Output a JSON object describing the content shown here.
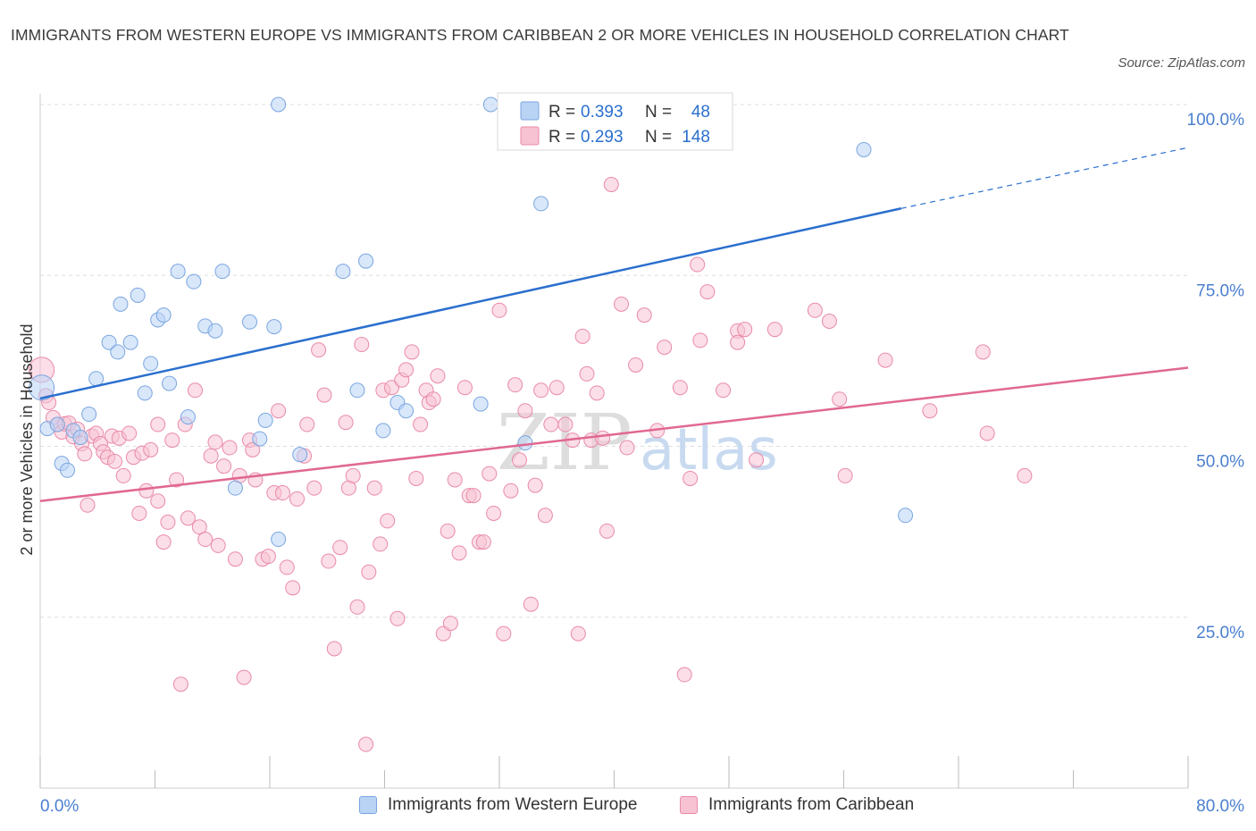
{
  "title": "IMMIGRANTS FROM WESTERN EUROPE VS IMMIGRANTS FROM CARIBBEAN 2 OR MORE VEHICLES IN HOUSEHOLD CORRELATION CHART",
  "source": "Source: ZipAtlas.com",
  "watermark": {
    "zip": "ZIP",
    "atlas": "atlas"
  },
  "colors": {
    "blue_fill": "#b9d3f5",
    "blue_stroke": "#7aa6e0",
    "blue_line": "#2a6fce",
    "pink_fill": "#f7c3d3",
    "pink_stroke": "#e98aa9",
    "pink_line": "#e06892",
    "axis_text": "#4a7fcf",
    "grid": "#dedede"
  },
  "legend_box": {
    "rows": [
      {
        "r_label": "R =",
        "r_value": "0.393",
        "n_label": "N =",
        "n_value": "48"
      },
      {
        "r_label": "R =",
        "r_value": "0.293",
        "n_label": "N =",
        "n_value": "148"
      }
    ]
  },
  "legend_bottom": {
    "blue": "Immigrants from Western Europe",
    "pink": "Immigrants from Caribbean"
  },
  "chart_data": {
    "type": "scatter",
    "title": "IMMIGRANTS FROM WESTERN EUROPE VS IMMIGRANTS FROM CARIBBEAN 2 OR MORE VEHICLES IN HOUSEHOLD CORRELATION CHART",
    "xlabel": "",
    "ylabel": "2 or more Vehicles in Household",
    "xlim": [
      0,
      80
    ],
    "ylim": [
      0,
      100
    ],
    "x_tick_labels": [
      "0.0%",
      "80.0%"
    ],
    "y_tick_labels": [
      "25.0%",
      "50.0%",
      "75.0%",
      "100.0%"
    ],
    "y_ticks": [
      25,
      50,
      75,
      100
    ],
    "grid": true,
    "legend_position": "top-center",
    "series": [
      {
        "name": "Immigrants from Western Europe",
        "color": "#b9d3f5",
        "trend": {
          "x": [
            0,
            60
          ],
          "y": [
            57.0,
            84.8
          ],
          "dashed_to_x": 80,
          "dashed_to_y": 93.7
        },
        "points": [
          [
            0.1,
            58.6
          ],
          [
            0.5,
            52.6
          ],
          [
            1.2,
            53.2
          ],
          [
            1.5,
            47.5
          ],
          [
            1.9,
            46.5
          ],
          [
            2.3,
            52.3
          ],
          [
            2.8,
            51.3
          ],
          [
            3.4,
            54.7
          ],
          [
            3.9,
            59.9
          ],
          [
            4.8,
            65.2
          ],
          [
            5.4,
            63.8
          ],
          [
            5.6,
            70.8
          ],
          [
            6.3,
            65.2
          ],
          [
            6.8,
            72.1
          ],
          [
            7.3,
            57.8
          ],
          [
            7.7,
            62.1
          ],
          [
            8.2,
            68.5
          ],
          [
            8.6,
            69.2
          ],
          [
            9.0,
            59.2
          ],
          [
            9.6,
            75.6
          ],
          [
            10.3,
            54.3
          ],
          [
            10.7,
            74.1
          ],
          [
            11.5,
            67.6
          ],
          [
            12.2,
            66.9
          ],
          [
            12.7,
            75.6
          ],
          [
            13.6,
            43.9
          ],
          [
            14.6,
            68.2
          ],
          [
            15.3,
            51.1
          ],
          [
            15.7,
            53.8
          ],
          [
            16.3,
            67.5
          ],
          [
            16.6,
            36.4
          ],
          [
            16.6,
            100.0
          ],
          [
            18.1,
            48.8
          ],
          [
            21.1,
            75.6
          ],
          [
            22.1,
            58.2
          ],
          [
            22.7,
            77.1
          ],
          [
            23.9,
            52.3
          ],
          [
            24.9,
            56.4
          ],
          [
            25.5,
            55.2
          ],
          [
            30.7,
            56.2
          ],
          [
            31.4,
            100.0
          ],
          [
            33.3,
            100.0
          ],
          [
            33.8,
            50.5
          ],
          [
            34.9,
            85.5
          ],
          [
            39.9,
            100.0
          ],
          [
            47.7,
            100.0
          ],
          [
            57.4,
            93.4
          ],
          [
            60.3,
            39.9
          ]
        ]
      },
      {
        "name": "Immigrants from Caribbean",
        "color": "#f7c3d3",
        "trend": {
          "x": [
            0,
            80
          ],
          "y": [
            42.0,
            61.5
          ]
        },
        "points": [
          [
            0.1,
            61.2
          ],
          [
            0.4,
            57.4
          ],
          [
            0.6,
            56.4
          ],
          [
            0.9,
            54.2
          ],
          [
            1.2,
            53.2
          ],
          [
            1.5,
            52.1
          ],
          [
            1.7,
            53.3
          ],
          [
            2.0,
            53.4
          ],
          [
            2.3,
            51.4
          ],
          [
            2.6,
            52.5
          ],
          [
            2.9,
            50.4
          ],
          [
            3.1,
            48.9
          ],
          [
            3.3,
            41.4
          ],
          [
            3.6,
            51.5
          ],
          [
            3.9,
            51.9
          ],
          [
            4.2,
            50.4
          ],
          [
            4.4,
            49.2
          ],
          [
            4.7,
            48.4
          ],
          [
            5.0,
            51.5
          ],
          [
            5.2,
            47.8
          ],
          [
            5.5,
            51.2
          ],
          [
            5.8,
            45.7
          ],
          [
            6.2,
            51.9
          ],
          [
            6.5,
            48.4
          ],
          [
            6.9,
            40.2
          ],
          [
            7.1,
            49.0
          ],
          [
            7.4,
            43.5
          ],
          [
            7.7,
            49.5
          ],
          [
            8.2,
            42.0
          ],
          [
            8.2,
            53.2
          ],
          [
            8.6,
            36.0
          ],
          [
            8.9,
            38.9
          ],
          [
            9.2,
            50.9
          ],
          [
            9.5,
            45.1
          ],
          [
            9.8,
            15.2
          ],
          [
            10.1,
            53.2
          ],
          [
            10.3,
            39.5
          ],
          [
            10.8,
            58.2
          ],
          [
            11.1,
            38.2
          ],
          [
            11.5,
            36.4
          ],
          [
            11.9,
            48.6
          ],
          [
            12.2,
            50.6
          ],
          [
            12.4,
            35.5
          ],
          [
            12.8,
            47.1
          ],
          [
            13.2,
            49.8
          ],
          [
            13.6,
            33.5
          ],
          [
            13.9,
            45.7
          ],
          [
            14.2,
            16.2
          ],
          [
            14.6,
            50.9
          ],
          [
            14.8,
            49.5
          ],
          [
            15.0,
            45.1
          ],
          [
            15.5,
            33.5
          ],
          [
            15.9,
            33.9
          ],
          [
            16.3,
            43.2
          ],
          [
            16.6,
            55.2
          ],
          [
            16.9,
            43.2
          ],
          [
            17.2,
            32.3
          ],
          [
            17.6,
            29.3
          ],
          [
            17.9,
            42.3
          ],
          [
            18.4,
            48.6
          ],
          [
            18.6,
            53.2
          ],
          [
            19.1,
            43.9
          ],
          [
            19.4,
            64.1
          ],
          [
            19.8,
            57.5
          ],
          [
            20.1,
            33.2
          ],
          [
            20.5,
            20.4
          ],
          [
            20.9,
            35.2
          ],
          [
            21.3,
            53.5
          ],
          [
            21.5,
            43.9
          ],
          [
            21.8,
            45.7
          ],
          [
            22.1,
            26.5
          ],
          [
            22.4,
            64.9
          ],
          [
            22.7,
            6.4
          ],
          [
            22.9,
            31.6
          ],
          [
            23.3,
            43.9
          ],
          [
            23.7,
            35.7
          ],
          [
            23.9,
            58.2
          ],
          [
            24.2,
            39.1
          ],
          [
            24.5,
            58.6
          ],
          [
            24.9,
            24.8
          ],
          [
            25.2,
            59.7
          ],
          [
            25.5,
            61.2
          ],
          [
            25.9,
            63.8
          ],
          [
            26.2,
            45.3
          ],
          [
            26.5,
            53.2
          ],
          [
            26.9,
            58.2
          ],
          [
            27.1,
            56.4
          ],
          [
            27.4,
            56.9
          ],
          [
            27.7,
            60.3
          ],
          [
            28.1,
            22.6
          ],
          [
            28.4,
            37.6
          ],
          [
            28.6,
            24.1
          ],
          [
            28.9,
            45.1
          ],
          [
            29.2,
            34.4
          ],
          [
            29.6,
            58.6
          ],
          [
            29.9,
            42.8
          ],
          [
            30.2,
            42.8
          ],
          [
            30.6,
            36.0
          ],
          [
            30.9,
            36.0
          ],
          [
            31.3,
            46.0
          ],
          [
            31.6,
            40.2
          ],
          [
            32.0,
            69.9
          ],
          [
            32.3,
            22.6
          ],
          [
            32.8,
            43.5
          ],
          [
            33.1,
            59.0
          ],
          [
            33.4,
            48.0
          ],
          [
            33.8,
            55.2
          ],
          [
            34.2,
            26.9
          ],
          [
            34.5,
            44.3
          ],
          [
            34.9,
            58.2
          ],
          [
            35.2,
            39.9
          ],
          [
            35.6,
            53.2
          ],
          [
            36.0,
            58.6
          ],
          [
            36.6,
            53.2
          ],
          [
            37.1,
            50.9
          ],
          [
            37.5,
            22.6
          ],
          [
            37.8,
            66.1
          ],
          [
            38.1,
            60.6
          ],
          [
            38.4,
            50.9
          ],
          [
            38.8,
            57.8
          ],
          [
            39.2,
            51.2
          ],
          [
            39.5,
            37.6
          ],
          [
            39.8,
            88.3
          ],
          [
            40.5,
            70.8
          ],
          [
            40.9,
            49.8
          ],
          [
            41.5,
            61.9
          ],
          [
            42.1,
            69.2
          ],
          [
            43.0,
            52.3
          ],
          [
            43.5,
            64.5
          ],
          [
            44.6,
            58.6
          ],
          [
            44.9,
            16.6
          ],
          [
            45.3,
            45.3
          ],
          [
            45.8,
            76.6
          ],
          [
            46.0,
            65.5
          ],
          [
            46.5,
            72.6
          ],
          [
            47.6,
            58.2
          ],
          [
            48.6,
            66.9
          ],
          [
            48.6,
            65.2
          ],
          [
            49.1,
            67.1
          ],
          [
            49.9,
            48.0
          ],
          [
            51.2,
            67.1
          ],
          [
            54.0,
            69.9
          ],
          [
            55.0,
            68.3
          ],
          [
            55.7,
            56.9
          ],
          [
            56.1,
            45.7
          ],
          [
            58.9,
            62.6
          ],
          [
            62.0,
            55.2
          ],
          [
            65.7,
            63.8
          ],
          [
            66.0,
            51.9
          ],
          [
            68.6,
            45.7
          ]
        ]
      }
    ]
  }
}
